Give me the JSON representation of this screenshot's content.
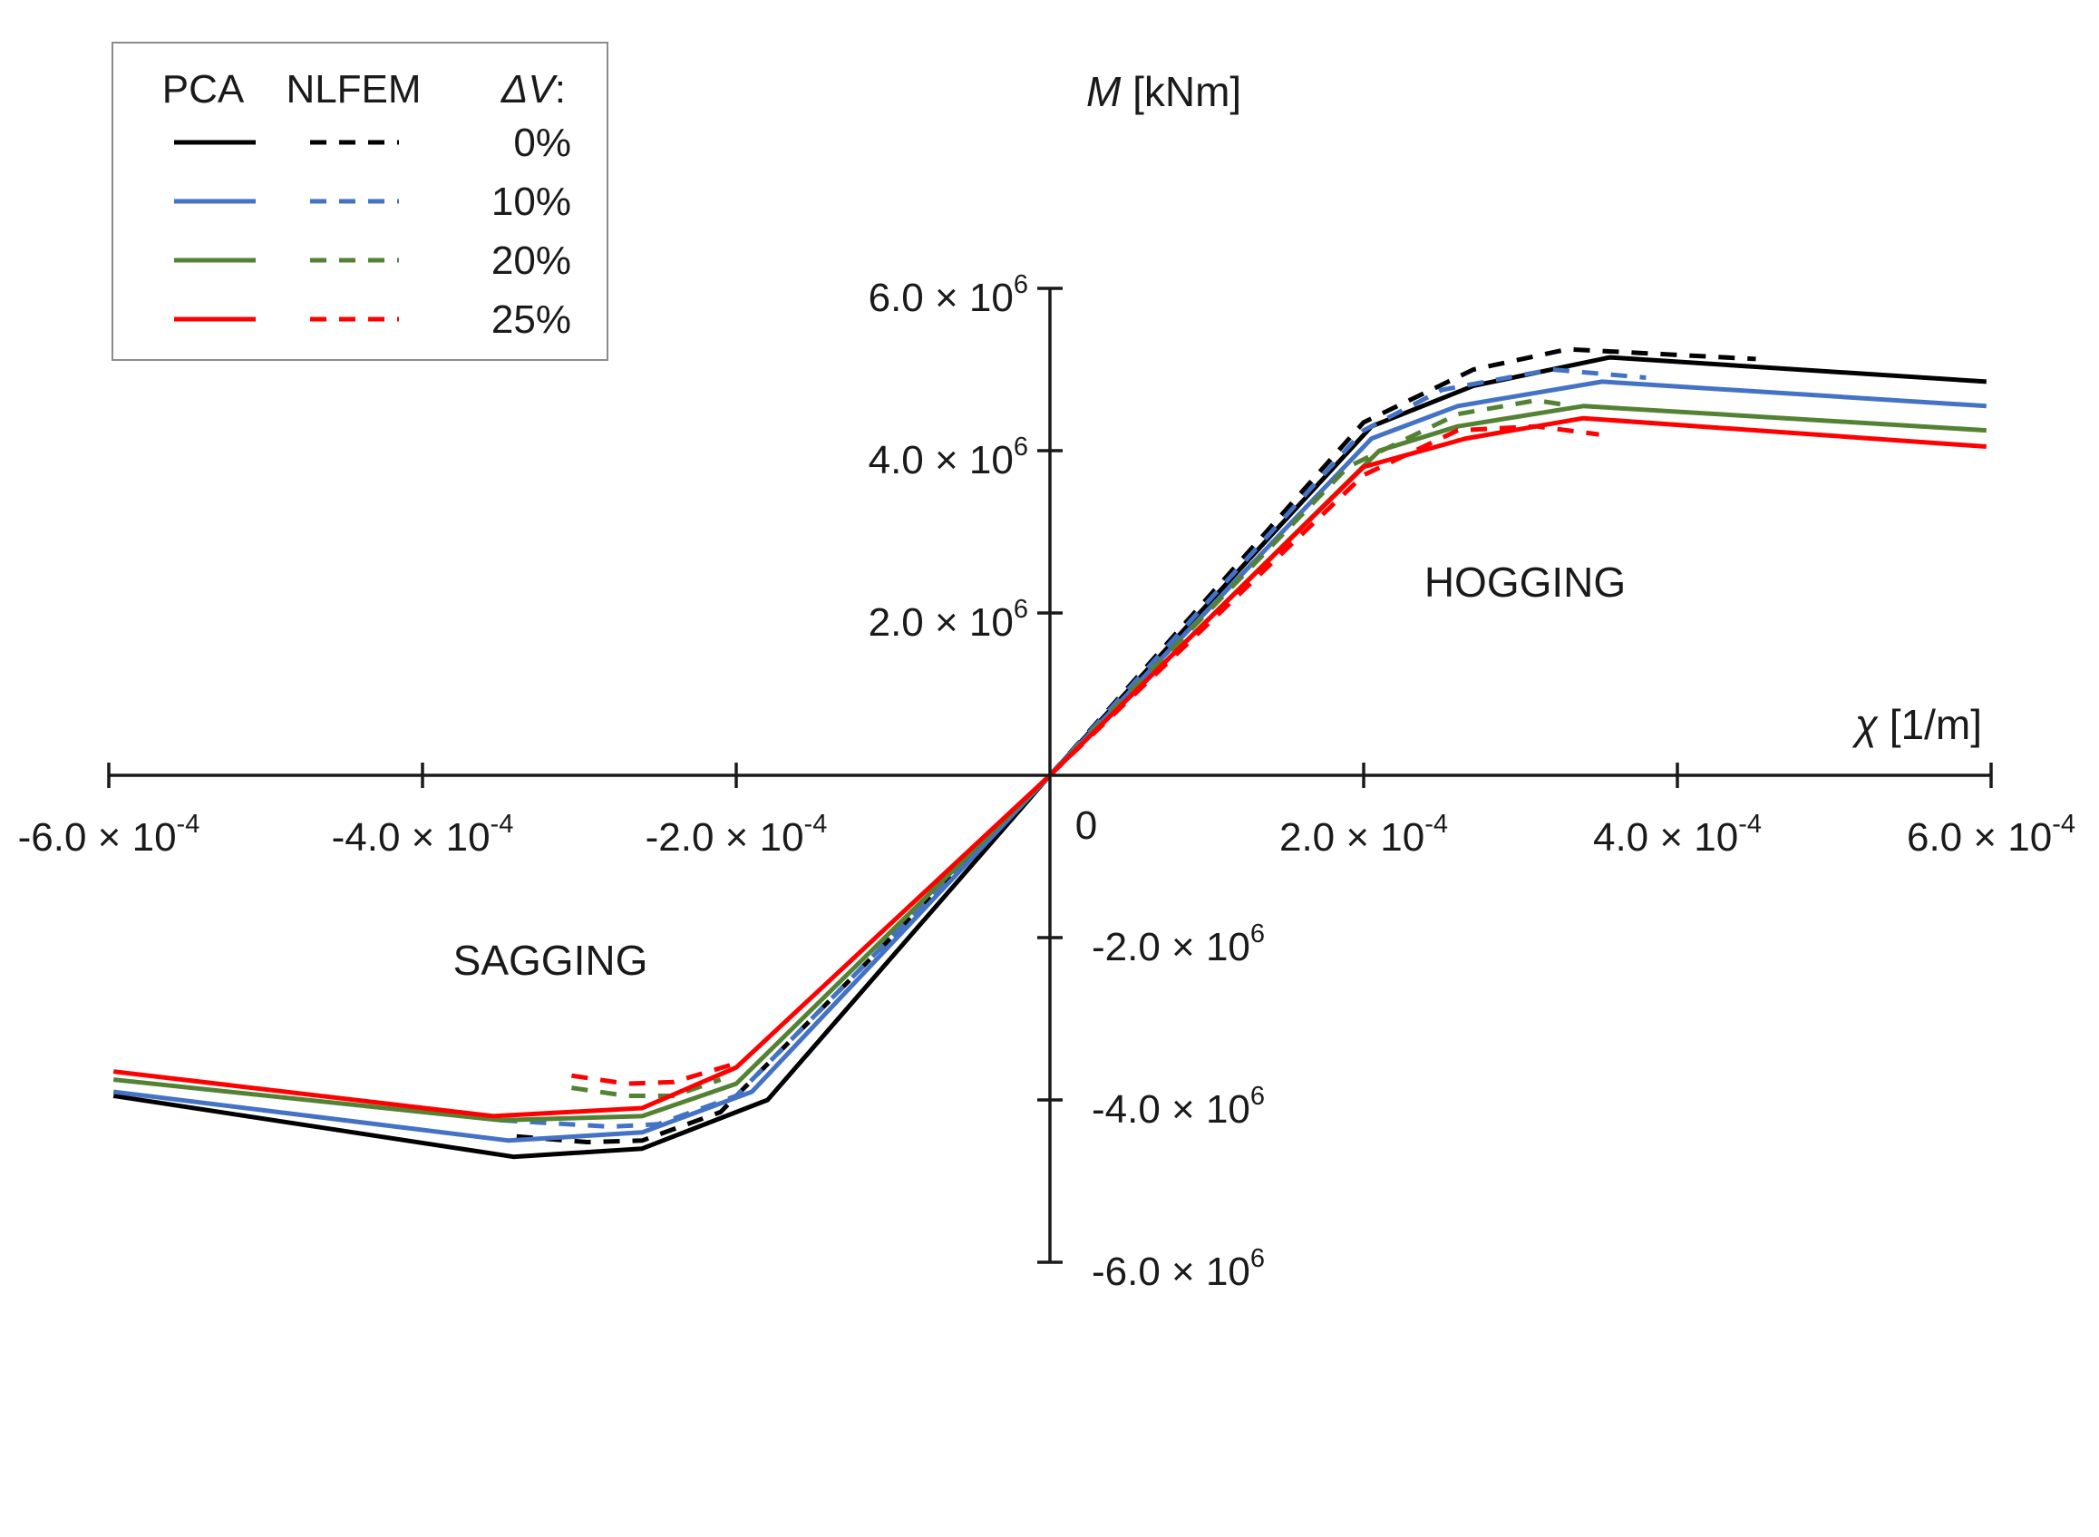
{
  "chart_data": {
    "type": "line",
    "x_axis": {
      "label_symbol": "χ",
      "label_unit": "[1/m]",
      "range": [
        -0.0006,
        0.0006
      ],
      "ticks": [
        {
          "value": -0.0006,
          "mantissa": "-6.0",
          "exponent": "-4"
        },
        {
          "value": -0.0004,
          "mantissa": "-4.0",
          "exponent": "-4"
        },
        {
          "value": -0.0002,
          "mantissa": "-2.0",
          "exponent": "-4"
        },
        {
          "value": 0,
          "plain": "0"
        },
        {
          "value": 0.0002,
          "mantissa": "2.0",
          "exponent": "-4"
        },
        {
          "value": 0.0004,
          "mantissa": "4.0",
          "exponent": "-4"
        },
        {
          "value": 0.0006,
          "mantissa": "6.0",
          "exponent": "-4"
        }
      ]
    },
    "y_axis": {
      "label_symbol": "M",
      "label_unit": "[kNm]",
      "range": [
        -6000000,
        6000000
      ],
      "ticks": [
        {
          "value": 6000000,
          "mantissa": "6.0",
          "exponent": "6"
        },
        {
          "value": 4000000,
          "mantissa": "4.0",
          "exponent": "6"
        },
        {
          "value": 2000000,
          "mantissa": "2.0",
          "exponent": "6"
        },
        {
          "value": -2000000,
          "mantissa": "-2.0",
          "exponent": "6"
        },
        {
          "value": -4000000,
          "mantissa": "-4.0",
          "exponent": "6"
        },
        {
          "value": -6000000,
          "mantissa": "-6.0",
          "exponent": "6"
        }
      ]
    },
    "times_symbol": "×",
    "base": "10",
    "regions": {
      "hogging": "HOGGING",
      "sagging": "SAGGING"
    },
    "grid": false,
    "legend": {
      "placement": "top-left",
      "header_pca": "PCA",
      "header_nlfem": "NLFEM",
      "header_dv_symbol": "ΔV",
      "header_dv_suffix": ":",
      "entries": [
        {
          "dv": "0%",
          "color": "#000000"
        },
        {
          "dv": "10%",
          "color": "#4472C4"
        },
        {
          "dv": "20%",
          "color": "#548235"
        },
        {
          "dv": "25%",
          "color": "#FF0000"
        }
      ]
    },
    "series": [
      {
        "method": "PCA",
        "dv": "0%",
        "color": "#000000",
        "style": "solid",
        "x": [
          -0.000597,
          -0.000342,
          -0.00026,
          -0.00018,
          0,
          0.000205,
          0.00027,
          0.000357,
          0.000597
        ],
        "y": [
          -3950000,
          -4700000,
          -4600000,
          -4000000,
          0,
          4300000,
          4800000,
          5150000,
          4850000
        ]
      },
      {
        "method": "NLFEM",
        "dv": "0%",
        "color": "#000000",
        "style": "dashed",
        "x": [
          0,
          0.0002,
          0.00027,
          0.00033,
          0.00045
        ],
        "y": [
          0,
          4350000,
          5000000,
          5250000,
          5130000
        ]
      },
      {
        "method": "NLFEM",
        "dv": "0%",
        "color": "#000000",
        "style": "dashed",
        "x": [
          -0.00034,
          -0.000295,
          -0.00026,
          -0.00021,
          0
        ],
        "y": [
          -4450000,
          -4520000,
          -4500000,
          -4150000,
          0
        ]
      },
      {
        "method": "PCA",
        "dv": "10%",
        "color": "#4472C4",
        "style": "solid",
        "x": [
          -0.000597,
          -0.000345,
          -0.00026,
          -0.00019,
          0,
          0.000205,
          0.00026,
          0.000352,
          0.000597
        ],
        "y": [
          -3900000,
          -4500000,
          -4400000,
          -3900000,
          0,
          4150000,
          4550000,
          4850000,
          4550000
        ]
      },
      {
        "method": "NLFEM",
        "dv": "10%",
        "color": "#4472C4",
        "style": "dashed",
        "x": [
          0,
          0.0002,
          0.00025,
          0.00032,
          0.00038
        ],
        "y": [
          0,
          4250000,
          4750000,
          5000000,
          4900000
        ]
      },
      {
        "method": "NLFEM",
        "dv": "10%",
        "color": "#4472C4",
        "style": "dashed",
        "x": [
          -0.00035,
          -0.00028,
          -0.00025,
          -0.0002,
          0
        ],
        "y": [
          -4250000,
          -4330000,
          -4300000,
          -3950000,
          0
        ]
      },
      {
        "method": "PCA",
        "dv": "20%",
        "color": "#548235",
        "style": "solid",
        "x": [
          -0.000597,
          -0.00035,
          -0.00026,
          -0.0002,
          0,
          0.00021,
          0.00026,
          0.00034,
          0.000597
        ],
        "y": [
          -3750000,
          -4250000,
          -4200000,
          -3800000,
          0,
          4000000,
          4300000,
          4550000,
          4250000
        ]
      },
      {
        "method": "NLFEM",
        "dv": "20%",
        "color": "#548235",
        "style": "dashed",
        "x": [
          0,
          0.00019,
          0.00026,
          0.00031,
          0.00033
        ],
        "y": [
          0,
          3800000,
          4450000,
          4620000,
          4560000
        ]
      },
      {
        "method": "NLFEM",
        "dv": "20%",
        "color": "#548235",
        "style": "dashed",
        "x": [
          -0.000305,
          -0.00027,
          -0.00024,
          -0.00021
        ],
        "y": [
          -3850000,
          -3950000,
          -3950000,
          -3750000
        ]
      },
      {
        "method": "PCA",
        "dv": "25%",
        "color": "#FF0000",
        "style": "solid",
        "x": [
          -0.000597,
          -0.000355,
          -0.00026,
          -0.0002,
          0,
          0.0002,
          0.000265,
          0.00034,
          0.000597
        ],
        "y": [
          -3650000,
          -4200000,
          -4100000,
          -3600000,
          0,
          3800000,
          4150000,
          4400000,
          4050000
        ]
      },
      {
        "method": "NLFEM",
        "dv": "25%",
        "color": "#FF0000",
        "style": "dashed",
        "x": [
          0,
          0.0002,
          0.00026,
          0.00031,
          0.00035
        ],
        "y": [
          0,
          3700000,
          4250000,
          4300000,
          4200000
        ]
      },
      {
        "method": "NLFEM",
        "dv": "25%",
        "color": "#FF0000",
        "style": "dashed",
        "x": [
          -0.000305,
          -0.00027,
          -0.00024,
          -0.0002
        ],
        "y": [
          -3700000,
          -3800000,
          -3780000,
          -3550000
        ]
      }
    ]
  }
}
